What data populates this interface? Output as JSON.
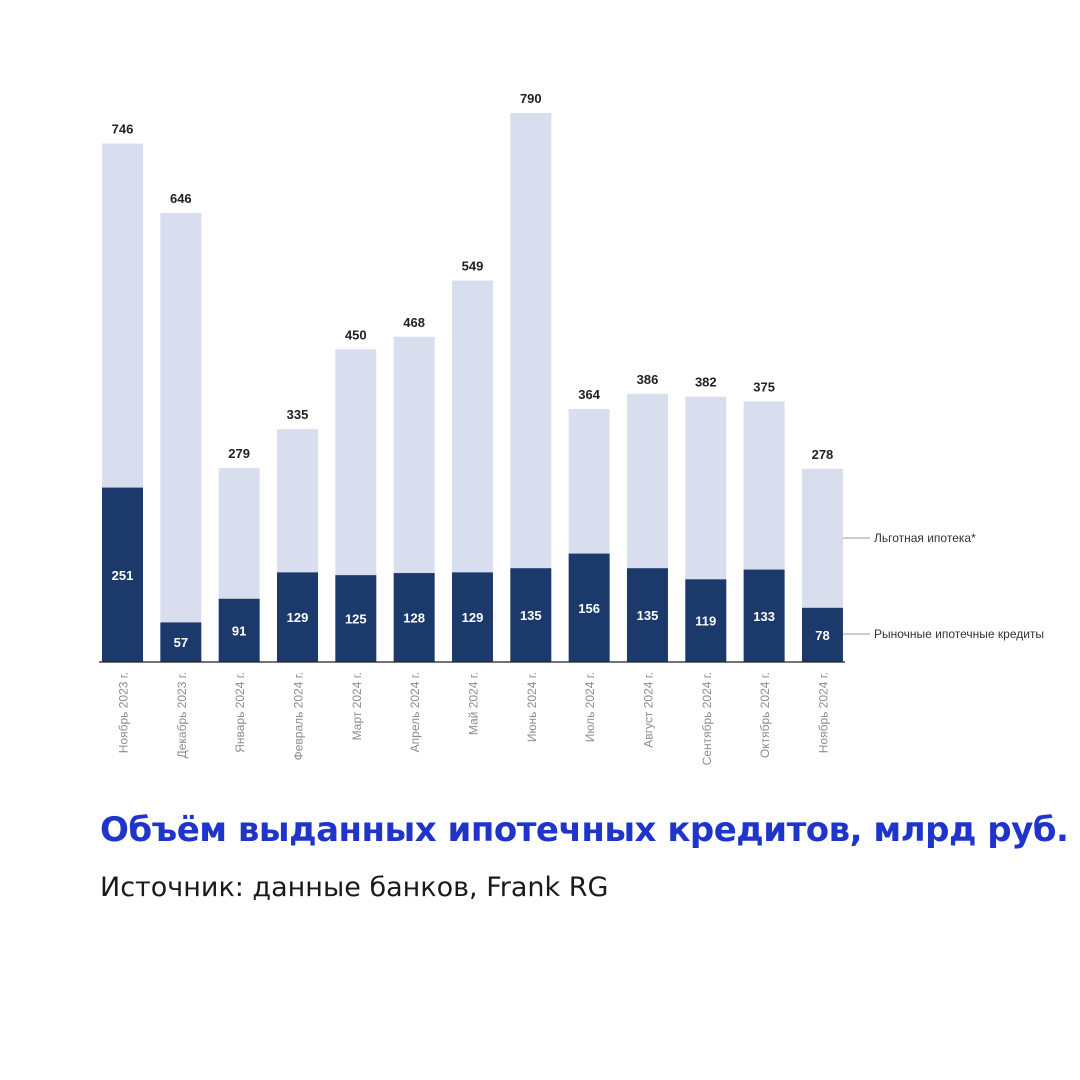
{
  "chart_data": {
    "type": "bar",
    "stacked": true,
    "categories": [
      "Ноябрь 2023 г.",
      "Декабрь 2023 г.",
      "Январь 2024 г.",
      "Февраль 2024 г.",
      "Март 2024 г.",
      "Апрель 2024 г.",
      "Май 2024 г.",
      "Июнь 2024 г.",
      "Июль 2024 г.",
      "Август 2024 г.",
      "Сентябрь 2024 г.",
      "Октябрь 2024 г.",
      "Ноябрь 2024 г."
    ],
    "series": [
      {
        "name": "Рыночные ипотечные кредиты",
        "color": "#1b3a6b",
        "values": [
          251,
          57,
          91,
          129,
          125,
          128,
          129,
          135,
          156,
          135,
          119,
          133,
          78
        ]
      },
      {
        "name": "Льготная ипотека*",
        "color": "#d8deed",
        "values": [
          495,
          589,
          188,
          206,
          325,
          340,
          420,
          655,
          208,
          251,
          263,
          242,
          200
        ]
      }
    ],
    "totals": [
      746,
      646,
      279,
      335,
      450,
      468,
      549,
      790,
      364,
      386,
      382,
      375,
      278
    ],
    "ylim": [
      0,
      790
    ],
    "legend": "right",
    "grid": false
  },
  "caption": {
    "title": "Объём выданных ипотечных кредитов, млрд руб.",
    "source": "Источник: данные банков, Frank RG"
  }
}
